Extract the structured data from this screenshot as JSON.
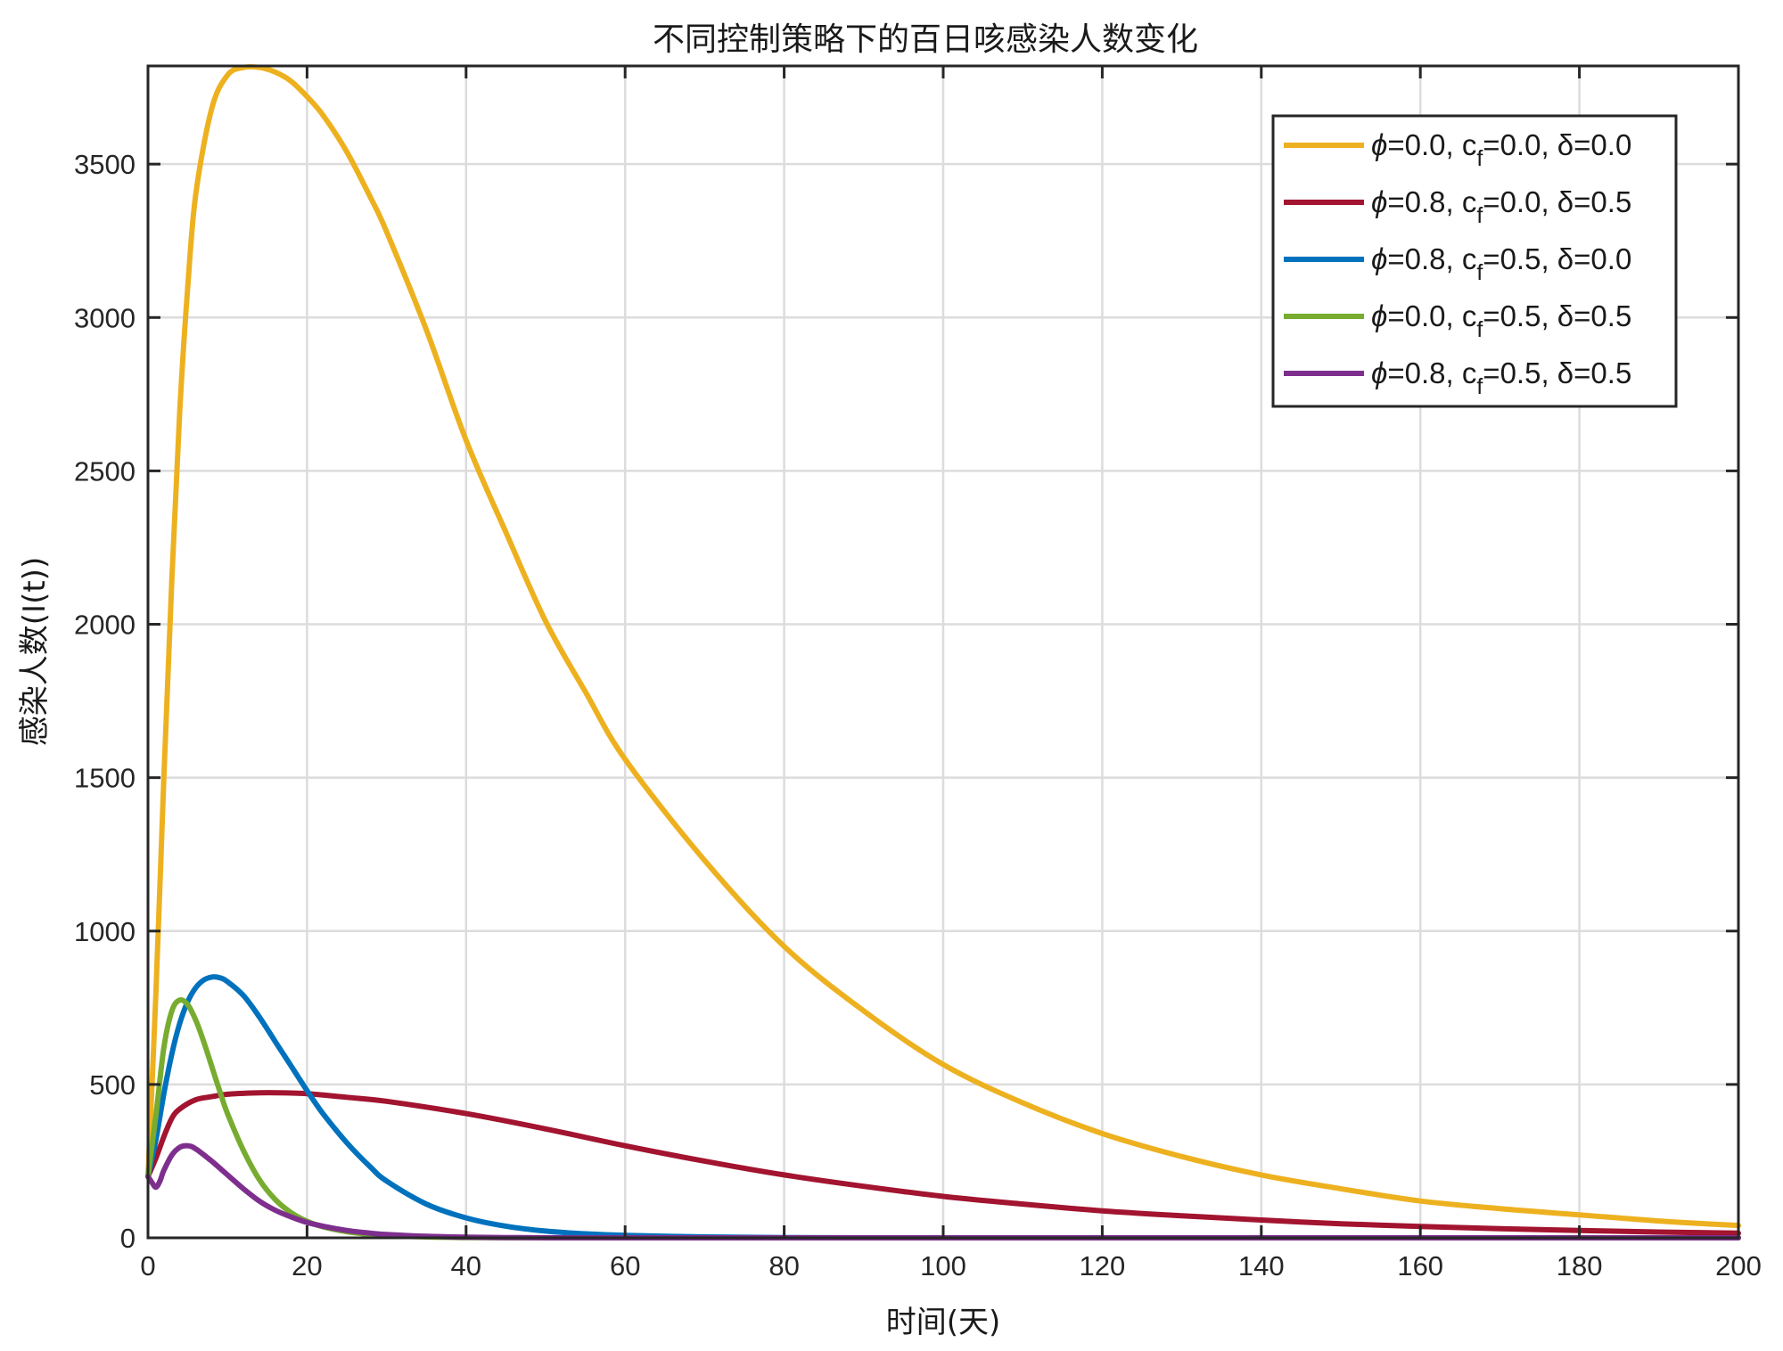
{
  "chart_data": {
    "type": "line",
    "title": "不同控制策略下的百日咳感染人数变化",
    "xlabel": "时间(天)",
    "ylabel": "感染人数(I(t))",
    "xlim": [
      0,
      200
    ],
    "ylim": [
      0,
      3820
    ],
    "xticks": [
      0,
      20,
      40,
      60,
      80,
      100,
      120,
      140,
      160,
      180,
      200
    ],
    "yticks": [
      0,
      500,
      1000,
      1500,
      2000,
      2500,
      3000,
      3500
    ],
    "grid": true,
    "legend_position": "top-right",
    "series": [
      {
        "name": "ϕ=0.0, c_f=0.0, δ=0.0",
        "legend": {
          "p": "=0.0, c",
          "s": "f",
          "q": "=0.0, δ=0.0"
        },
        "color": "#EDB120",
        "x": [
          0,
          1,
          2,
          3,
          4,
          5,
          6,
          8,
          10,
          12,
          14,
          16,
          18,
          20,
          22,
          25,
          28,
          30,
          35,
          40,
          45,
          50,
          55,
          60,
          70,
          80,
          90,
          100,
          110,
          120,
          130,
          140,
          150,
          160,
          170,
          180,
          190,
          200
        ],
        "y": [
          200,
          800,
          1500,
          2150,
          2700,
          3100,
          3400,
          3680,
          3790,
          3815,
          3815,
          3800,
          3770,
          3720,
          3660,
          3540,
          3390,
          3280,
          2960,
          2600,
          2300,
          2010,
          1780,
          1560,
          1230,
          950,
          740,
          565,
          440,
          340,
          265,
          205,
          160,
          120,
          95,
          75,
          55,
          40
        ]
      },
      {
        "name": "ϕ=0.8, c_f=0.0, δ=0.5",
        "legend": {
          "p": "=0.8, c",
          "s": "f",
          "q": "=0.0, δ=0.5"
        },
        "color": "#A2142F",
        "x": [
          0,
          1,
          2,
          3,
          4,
          6,
          8,
          10,
          13,
          16,
          20,
          25,
          30,
          40,
          50,
          60,
          70,
          80,
          90,
          100,
          110,
          120,
          130,
          140,
          150,
          160,
          170,
          180,
          190,
          200
        ],
        "y": [
          200,
          260,
          330,
          390,
          420,
          450,
          460,
          468,
          472,
          473,
          470,
          458,
          445,
          405,
          355,
          300,
          250,
          205,
          168,
          135,
          110,
          88,
          72,
          58,
          46,
          37,
          30,
          24,
          19,
          15
        ]
      },
      {
        "name": "ϕ=0.8, c_f=0.5, δ=0.0",
        "legend": {
          "p": "=0.8, c",
          "s": "f",
          "q": "=0.5, δ=0.0"
        },
        "color": "#0072BD",
        "x": [
          0,
          1,
          2,
          3,
          4,
          5,
          6,
          7,
          8,
          9,
          10,
          12,
          14,
          16,
          18,
          20,
          22,
          25,
          28,
          30,
          35,
          40,
          45,
          50,
          55,
          60,
          70,
          80,
          90,
          100,
          120,
          140,
          160,
          180,
          200
        ],
        "y": [
          200,
          320,
          470,
          600,
          700,
          770,
          815,
          840,
          850,
          848,
          835,
          790,
          720,
          640,
          560,
          480,
          405,
          310,
          230,
          185,
          110,
          65,
          38,
          22,
          13,
          8,
          3,
          1,
          0,
          0,
          0,
          0,
          0,
          0,
          0
        ]
      },
      {
        "name": "ϕ=0.0, c_f=0.5, δ=0.5",
        "legend": {
          "p": "=0.0, c",
          "s": "f",
          "q": "=0.5, δ=0.5"
        },
        "color": "#77AC30",
        "x": [
          0,
          1,
          2,
          3,
          4,
          5,
          6,
          7,
          8,
          9,
          10,
          12,
          14,
          16,
          18,
          20,
          22,
          25,
          28,
          30,
          35,
          40,
          45,
          50,
          60,
          70,
          80,
          100,
          120,
          140,
          160,
          180,
          200
        ],
        "y": [
          200,
          400,
          620,
          740,
          775,
          760,
          710,
          640,
          560,
          480,
          405,
          285,
          190,
          125,
          82,
          54,
          36,
          20,
          11,
          8,
          3,
          1,
          0,
          0,
          0,
          0,
          0,
          0,
          0,
          0,
          0,
          0,
          0
        ]
      },
      {
        "name": "ϕ=0.8, c_f=0.5, δ=0.5",
        "legend": {
          "p": "=0.8, c",
          "s": "f",
          "q": "=0.5, δ=0.5"
        },
        "color": "#7E2F8E",
        "x": [
          0,
          0.5,
          1,
          1.5,
          2,
          3,
          4,
          5,
          6,
          8,
          10,
          12,
          14,
          16,
          18,
          20,
          22,
          25,
          28,
          30,
          35,
          40,
          45,
          50,
          60,
          70,
          80,
          100,
          120,
          140,
          160,
          180,
          200
        ],
        "y": [
          200,
          180,
          165,
          185,
          220,
          270,
          295,
          300,
          290,
          250,
          205,
          160,
          120,
          90,
          68,
          50,
          38,
          24,
          15,
          11,
          5,
          2,
          1,
          0,
          0,
          0,
          0,
          0,
          0,
          0,
          0,
          0,
          0
        ]
      }
    ]
  }
}
